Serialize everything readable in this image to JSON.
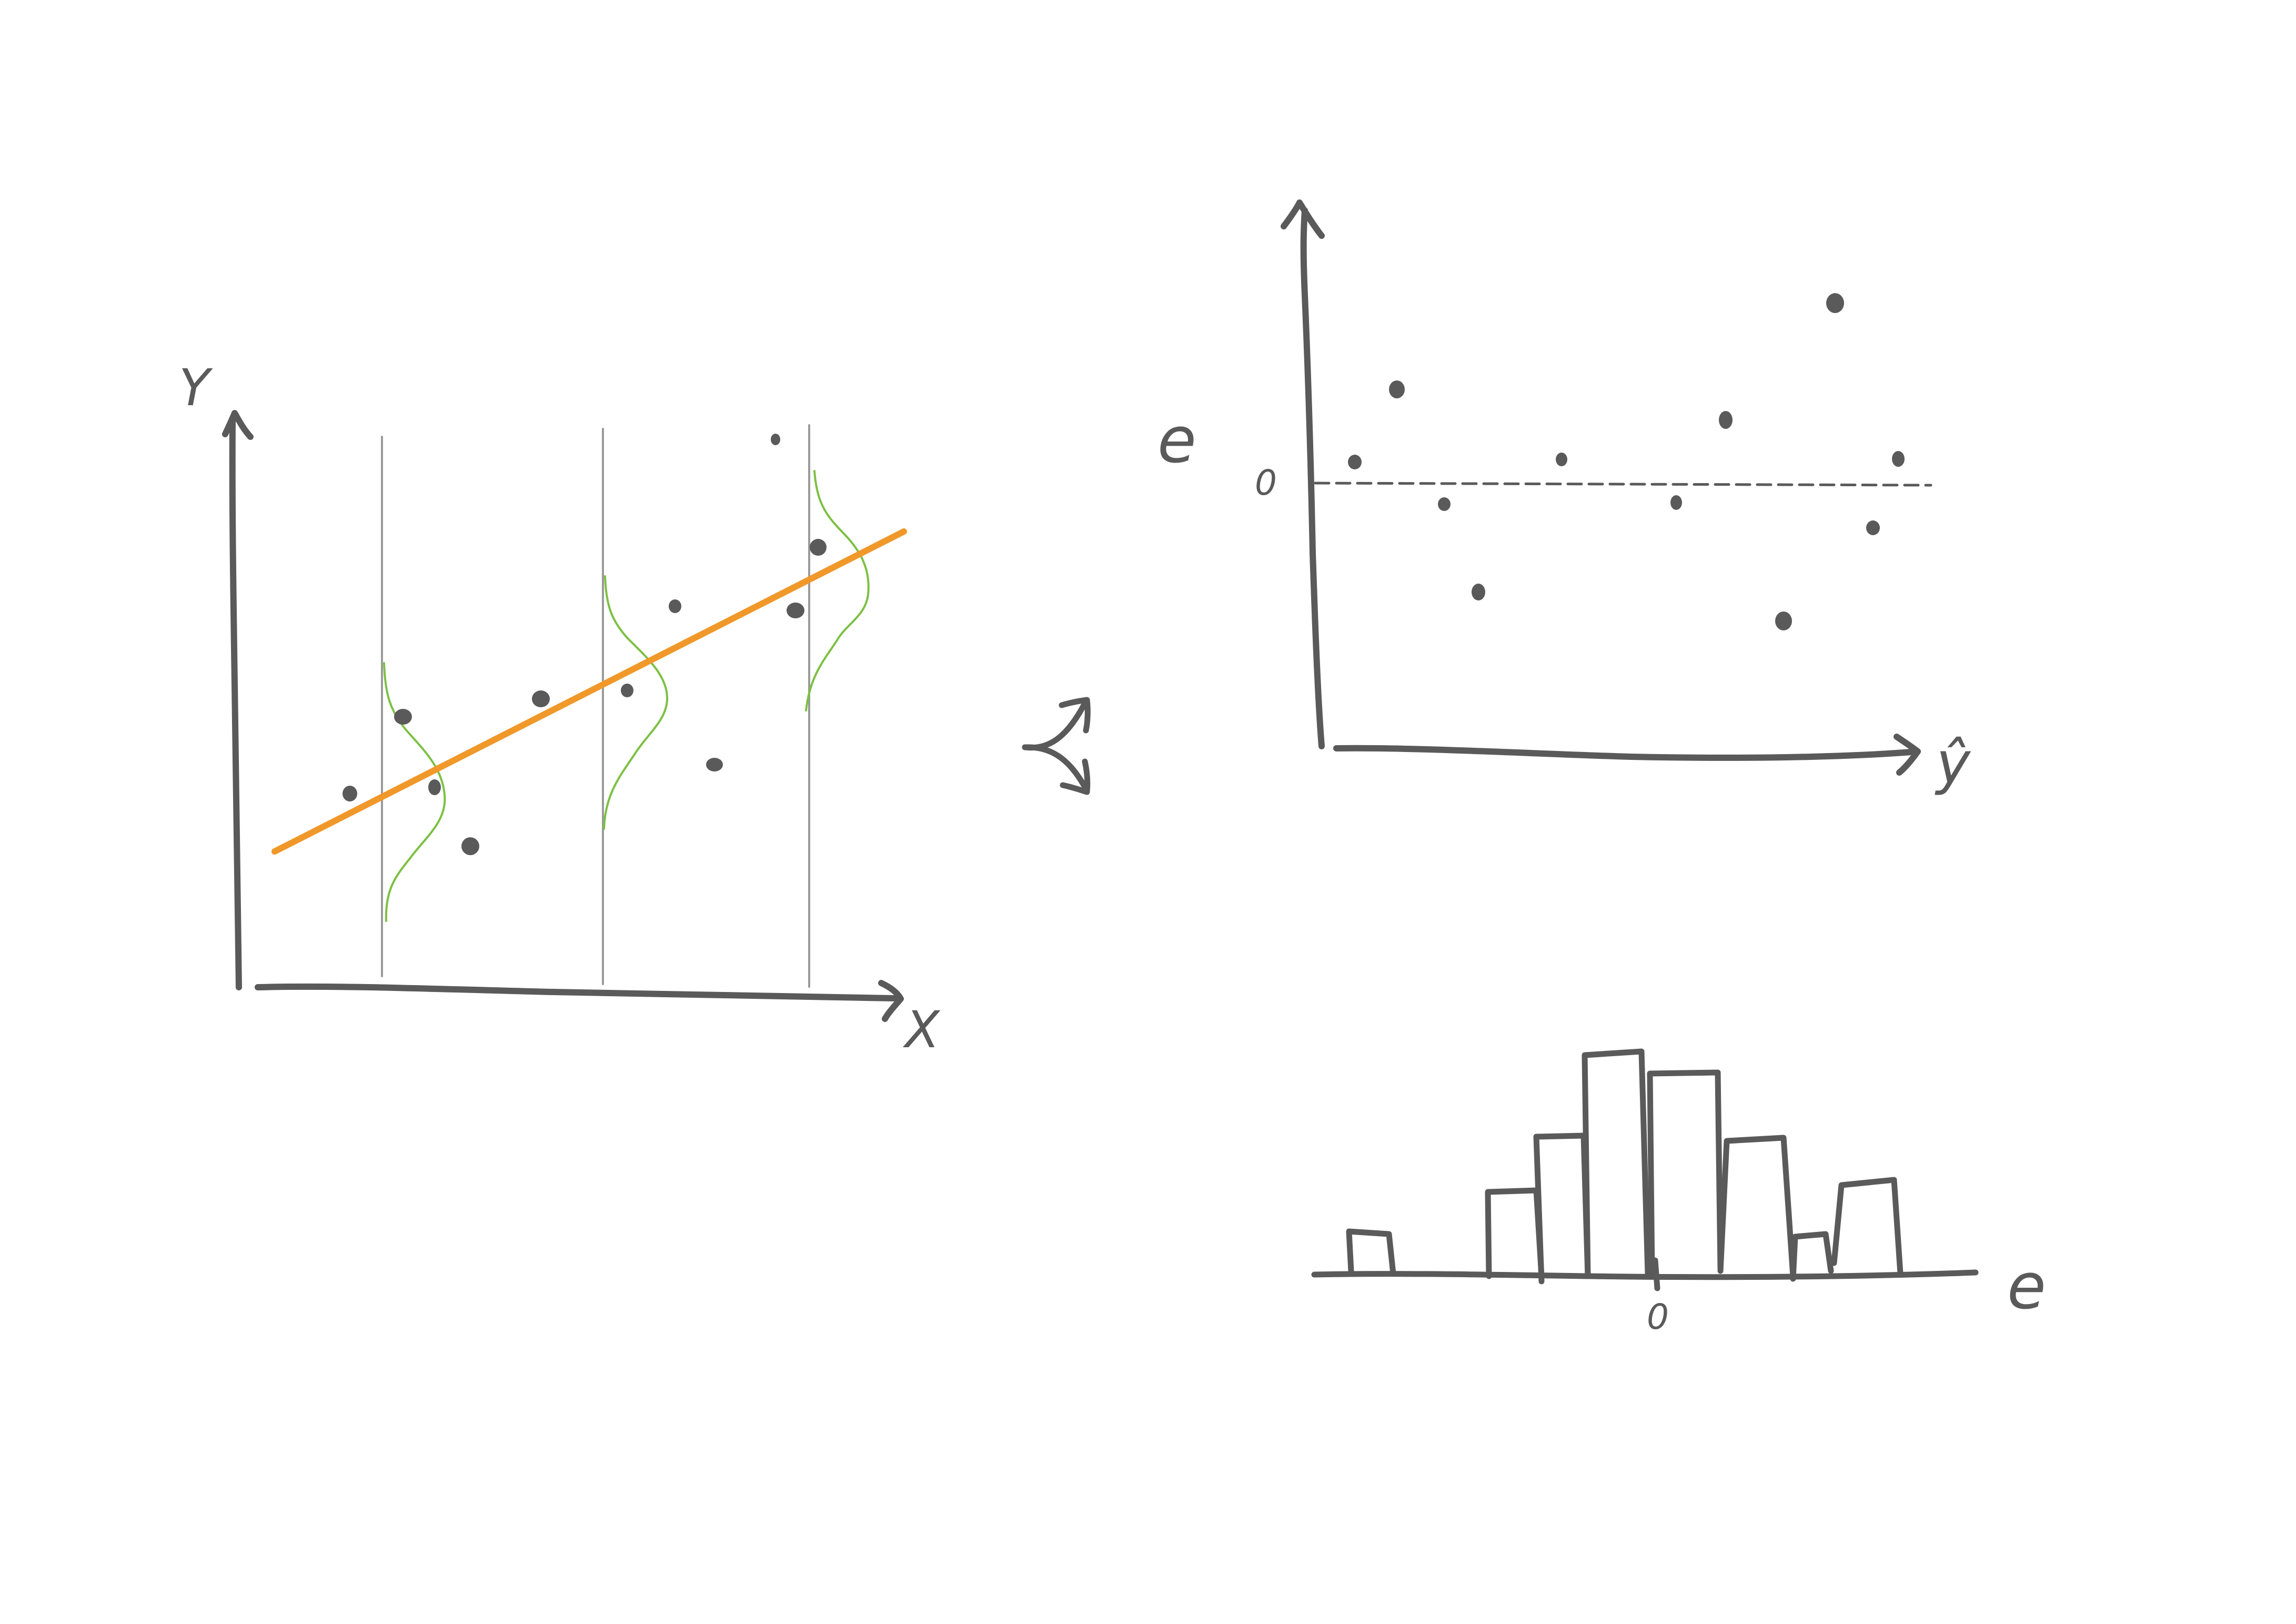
{
  "colors": {
    "ink": "#5a5a5a",
    "regression_line": "#f0982a",
    "distribution_curves": "#7cc043",
    "guide_lines": "#9a9a9a",
    "background": "#ffffff"
  },
  "regression_plot": {
    "y_axis_label": "Y",
    "x_axis_label": "X"
  },
  "residual_plot": {
    "y_axis_label": "e",
    "zero_label": "0",
    "x_axis_label": "ŷ"
  },
  "histogram": {
    "axis_label": "e",
    "zero_label": "0"
  },
  "connector_icon": "double-curved-arrow-icon"
}
